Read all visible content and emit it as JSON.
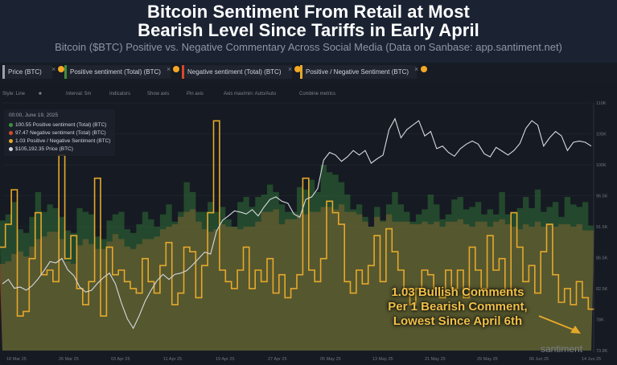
{
  "header": {
    "title_line1": "Bitcoin Sentiment From Retail at Most",
    "title_line2": "Bearish Level Since Tariffs in Early April",
    "subtitle": "Bitcoin ($BTC) Positive vs. Negative Commentary Across Social Media (Data on Sanbase: app.santiment.net)"
  },
  "tabs": [
    {
      "label": "Price (BTC)",
      "color": "#9aa3b0"
    },
    {
      "label": "Positive sentiment (Total) (BTC)",
      "color": "#3e8f3e"
    },
    {
      "label": "Negative sentiment (Total) (BTC)",
      "color": "#d9472b"
    },
    {
      "label": "Positive / Negative Sentiment (BTC)",
      "color": "#e5a82a"
    }
  ],
  "toolbar": {
    "style": "Style: Line",
    "interval": "Interval: 5m",
    "indicators": "Indicators",
    "show_axis": "Show axis",
    "pin_axis": "Pin axis",
    "axis_max_min": "Axis max/min: Auto/Auto",
    "combine": "Combine metrics"
  },
  "legend": {
    "date": "00:00, June 19, 2025",
    "items": [
      {
        "text": "100.55 Positive sentiment (Total) (BTC)",
        "color": "#3e8f3e"
      },
      {
        "text": "97.47 Negative sentiment (Total) (BTC)",
        "color": "#d9472b"
      },
      {
        "text": "1.03 Positive / Negative Sentiment (BTC)",
        "color": "#e5a82a"
      },
      {
        "text": "$105,192.35 Price (BTC)",
        "color": "#cfd3da"
      }
    ]
  },
  "annotation": {
    "line1": "1.03 Bullish Comments",
    "line2": "Per 1 Bearish Comment,",
    "line3": "Lowest Since April 6th"
  },
  "watermark": "santiment",
  "chart_data": {
    "type": "area",
    "title": "Bitcoin Sentiment From Retail at Most Bearish Level Since Tariffs in Early April",
    "x_ticks": [
      "18 Mar 25",
      "26 Mar 25",
      "03 Apr 25",
      "11 Apr 25",
      "19 Apr 25",
      "27 Apr 25",
      "05 May 25",
      "13 May 25",
      "21 May 25",
      "29 May 25",
      "06 Jun 25",
      "14 Jun 25"
    ],
    "y_ticks_price": [
      "110K",
      "105K",
      "100K",
      "96.5K",
      "91.5K",
      "86.5K",
      "82.5K",
      "78K",
      "73.8K"
    ],
    "ylim_price": [
      73000,
      112000
    ],
    "series": [
      {
        "name": "Price (BTC)",
        "color": "#d6d9de",
        "values": [
          83500,
          84200,
          82800,
          83000,
          82500,
          83200,
          84300,
          85600,
          87000,
          86800,
          87500,
          85700,
          84800,
          83000,
          82200,
          82500,
          83600,
          84500,
          85200,
          83500,
          80500,
          78000,
          76500,
          78500,
          80800,
          82500,
          84000,
          85000,
          84200,
          85000,
          85200,
          85600,
          86500,
          87500,
          88500,
          88200,
          91800,
          93500,
          94200,
          95000,
          94800,
          94500,
          95200,
          94200,
          95600,
          96800,
          97200,
          96500,
          96200,
          94500,
          94000,
          96800,
          97200,
          98500,
          103000,
          104200,
          103800,
          102800,
          103500,
          104500,
          103800,
          104500,
          102500,
          103200,
          103800,
          107800,
          109500,
          106500,
          107800,
          108500,
          109200,
          106800,
          107500,
          104800,
          105200,
          104200,
          103600,
          104800,
          105500,
          106000,
          105500,
          104000,
          103500,
          105000,
          104400,
          103800,
          104500,
          105600,
          108000,
          109200,
          108500,
          105200,
          106500,
          107500,
          106800,
          104500,
          105800,
          106000,
          105800,
          105200
        ]
      },
      {
        "name": "Positive sentiment (Total) (BTC)",
        "color": "#3e8f3e",
        "values": [
          105,
          110,
          120,
          98,
          95,
          108,
          128,
          112,
          118,
          115,
          108,
          97,
          95,
          115,
          112,
          110,
          92,
          90,
          105,
          110,
          112,
          98,
          95,
          102,
          112,
          106,
          100,
          110,
          118,
          104,
          112,
          136,
          128,
          112,
          112,
          120,
          112,
          116,
          106,
          100,
          120,
          124,
          116,
          124,
          126,
          134,
          128,
          118,
          112,
          112,
          132,
          130,
          138,
          128,
          150,
          144,
          142,
          136,
          126,
          114,
          118,
          108,
          100,
          116,
          105,
          118,
          128,
          118,
          112,
          104,
          110,
          114,
          126,
          118,
          106,
          110,
          122,
          124,
          114,
          116,
          120,
          110,
          114,
          110,
          128,
          110,
          112,
          115,
          124,
          115,
          130,
          112,
          116,
          120,
          108,
          124,
          118,
          116,
          120,
          101
        ]
      },
      {
        "name": "Negative sentiment (Total) (BTC)",
        "color": "#d9472b",
        "values": [
          70,
          72,
          78,
          80,
          76,
          84,
          90,
          92,
          96,
          96,
          90,
          72,
          70,
          85,
          90,
          86,
          82,
          82,
          88,
          94,
          90,
          84,
          82,
          86,
          90,
          90,
          92,
          98,
          100,
          102,
          108,
          112,
          114,
          104,
          98,
          96,
          98,
          102,
          100,
          100,
          98,
          100,
          100,
          104,
          112,
          112,
          114,
          102,
          106,
          106,
          110,
          110,
          112,
          112,
          116,
          116,
          114,
          118,
          112,
          112,
          110,
          104,
          100,
          108,
          104,
          110,
          104,
          104,
          104,
          102,
          102,
          104,
          102,
          104,
          100,
          104,
          104,
          106,
          102,
          100,
          104,
          104,
          100,
          104,
          106,
          102,
          100,
          98,
          102,
          100,
          104,
          100,
          102,
          100,
          102,
          102,
          100,
          102,
          97,
          97
        ]
      },
      {
        "name": "Positive / Negative Sentiment (BTC)",
        "color": "#e5a82a",
        "values": [
          1.3,
          1.4,
          1.55,
          1.0,
          1.02,
          1.25,
          1.45,
          1.18,
          1.2,
          1.15,
          1.7,
          1.25,
          1.35,
          1.12,
          1.05,
          1.15,
          1.6,
          1.0,
          1.3,
          1.18,
          1.2,
          1.15,
          1.12,
          1.1,
          1.25,
          1.15,
          1.1,
          1.22,
          1.32,
          1.05,
          1.1,
          1.3,
          1.28,
          1.08,
          1.22,
          1.45,
          1.85,
          1.2,
          1.15,
          1.12,
          1.2,
          1.3,
          1.12,
          1.2,
          1.15,
          1.25,
          1.1,
          1.18,
          1.08,
          1.12,
          1.18,
          1.6,
          1.2,
          1.15,
          1.25,
          1.5,
          1.45,
          1.4,
          1.15,
          1.1,
          1.2,
          1.14,
          1.22,
          1.35,
          1.15,
          1.38,
          1.28,
          1.2,
          1.12,
          1.05,
          1.12,
          1.2,
          1.18,
          1.12,
          1.08,
          1.2,
          1.12,
          1.2,
          1.08,
          1.3,
          1.2,
          1.12,
          1.35,
          1.2,
          1.25,
          1.1,
          1.45,
          1.3,
          1.15,
          1.22,
          1.1,
          1.28,
          1.4,
          1.18,
          1.06,
          1.12,
          1.05,
          1.15,
          1.08,
          1.03
        ]
      }
    ]
  }
}
